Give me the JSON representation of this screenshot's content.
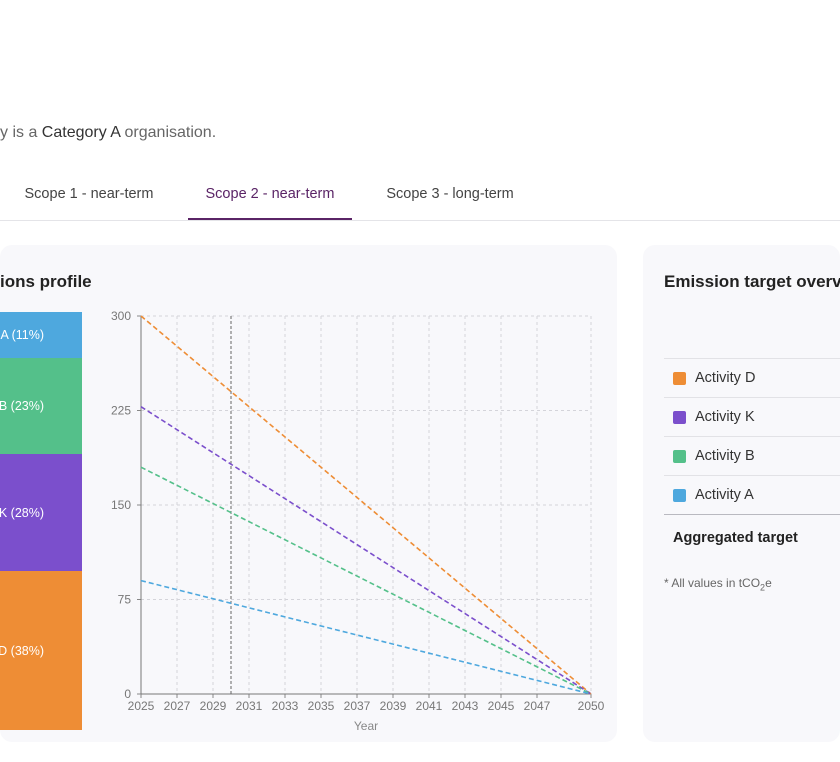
{
  "intro": {
    "prefix": "y is a ",
    "category": "Category A",
    "suffix": " organisation."
  },
  "tabs": [
    {
      "label": "Scope 1 - near-term",
      "active": false
    },
    {
      "label": "Scope 2 - near-term",
      "active": true
    },
    {
      "label": "Scope 3 - long-term",
      "active": false
    }
  ],
  "profile_card": {
    "title": "ions profile",
    "segments": [
      {
        "label": "A (11%)",
        "color": "#4ea8de",
        "share": 11
      },
      {
        "label": "B (23%)",
        "color": "#54c08a",
        "share": 23
      },
      {
        "label": "K (28%)",
        "color": "#7b4fcc",
        "share": 28
      },
      {
        "label": "D (38%)",
        "color": "#ee8d35",
        "share": 38
      }
    ]
  },
  "chart_data": {
    "type": "line",
    "xlabel": "Year",
    "ylabel": "",
    "xlim": [
      2025,
      2050
    ],
    "ylim": [
      0,
      300
    ],
    "x_ticks": [
      2025,
      2027,
      2029,
      2031,
      2033,
      2035,
      2037,
      2039,
      2041,
      2043,
      2045,
      2047,
      2050
    ],
    "y_ticks": [
      0,
      75,
      150,
      225,
      300
    ],
    "grid": true,
    "marker_year": 2030,
    "series": [
      {
        "color": "#ee8d35",
        "points": [
          [
            2025,
            300
          ],
          [
            2050,
            0
          ]
        ]
      },
      {
        "color": "#7b4fcc",
        "points": [
          [
            2025,
            228
          ],
          [
            2050,
            0
          ]
        ]
      },
      {
        "color": "#54c08a",
        "points": [
          [
            2025,
            180
          ],
          [
            2050,
            0
          ]
        ]
      },
      {
        "color": "#4ea8de",
        "points": [
          [
            2025,
            90
          ],
          [
            2050,
            0
          ]
        ]
      }
    ]
  },
  "target_card": {
    "title": "Emission target overvi",
    "rows": [
      {
        "label": "Activity D",
        "color": "#ee8d35"
      },
      {
        "label": "Activity K",
        "color": "#7b4fcc"
      },
      {
        "label": "Activity B",
        "color": "#54c08a"
      },
      {
        "label": "Activity A",
        "color": "#4ea8de"
      }
    ],
    "aggregated_label": "Aggregated target",
    "footnote_prefix": "* All values in tCO",
    "footnote_sub": "2",
    "footnote_suffix": "e"
  }
}
